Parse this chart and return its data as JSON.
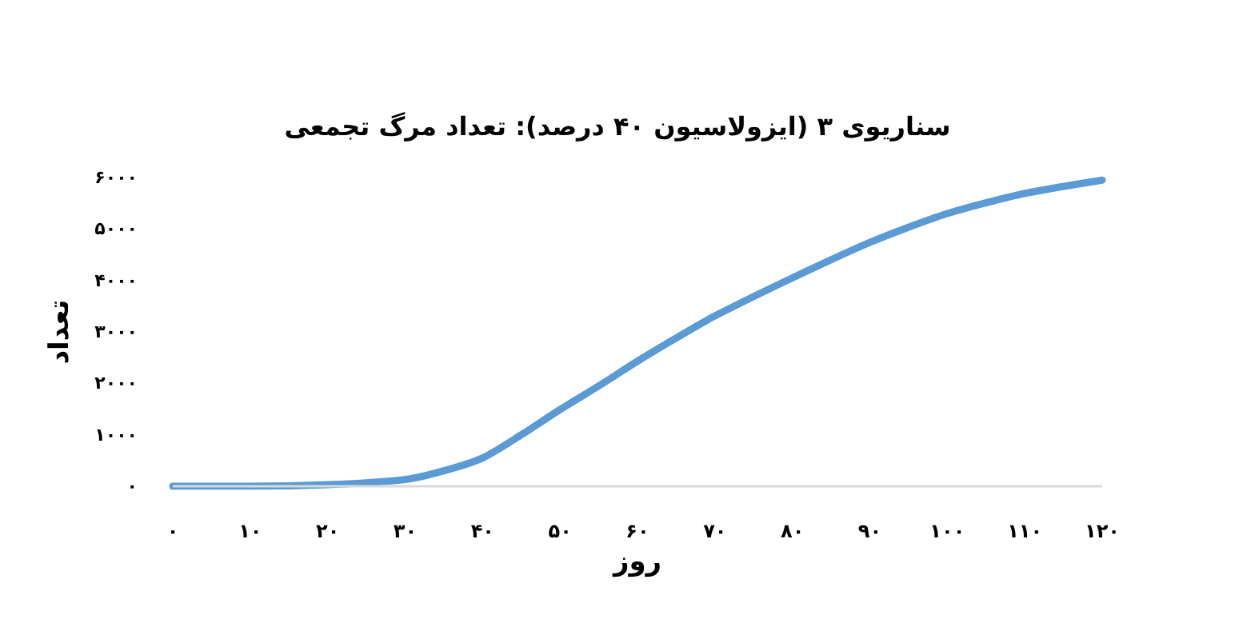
{
  "chart_data": {
    "type": "line",
    "title": "سناریوی ۳ (ایزولاسیون ۴۰ درصد): تعداد مرگ تجمعی",
    "xlabel": "روز",
    "ylabel": "تعداد",
    "x": [
      0,
      10,
      20,
      30,
      35,
      40,
      45,
      50,
      55,
      60,
      65,
      70,
      80,
      90,
      100,
      110,
      120
    ],
    "series": [
      {
        "color": "#5b9bd5",
        "values": [
          0,
          0,
          30,
          130,
          300,
          550,
          1000,
          1490,
          1950,
          2430,
          2880,
          3310,
          4050,
          4740,
          5300,
          5690,
          5950
        ]
      }
    ],
    "xlim": [
      0,
      120
    ],
    "xticks": [
      {
        "value": 0,
        "label": "۰"
      },
      {
        "value": 10,
        "label": "۱۰"
      },
      {
        "value": 20,
        "label": "۲۰"
      },
      {
        "value": 30,
        "label": "۳۰"
      },
      {
        "value": 40,
        "label": "۴۰"
      },
      {
        "value": 50,
        "label": "۵۰"
      },
      {
        "value": 60,
        "label": "۶۰"
      },
      {
        "value": 70,
        "label": "۷۰"
      },
      {
        "value": 80,
        "label": "۸۰"
      },
      {
        "value": 90,
        "label": "۹۰"
      },
      {
        "value": 100,
        "label": "۱۰۰"
      },
      {
        "value": 110,
        "label": "۱۱۰"
      },
      {
        "value": 120,
        "label": "۱۲۰"
      }
    ],
    "ylim": [
      0,
      6000
    ],
    "yticks": [
      {
        "value": 0,
        "label": "۰"
      },
      {
        "value": 1000,
        "label": "۱۰۰۰"
      },
      {
        "value": 2000,
        "label": "۲۰۰۰"
      },
      {
        "value": 3000,
        "label": "۳۰۰۰"
      },
      {
        "value": 4000,
        "label": "۴۰۰۰"
      },
      {
        "value": 5000,
        "label": "۵۰۰۰"
      },
      {
        "value": 6000,
        "label": "۶۰۰۰"
      }
    ],
    "grid": false,
    "marker": "none",
    "line_style": "solid"
  }
}
